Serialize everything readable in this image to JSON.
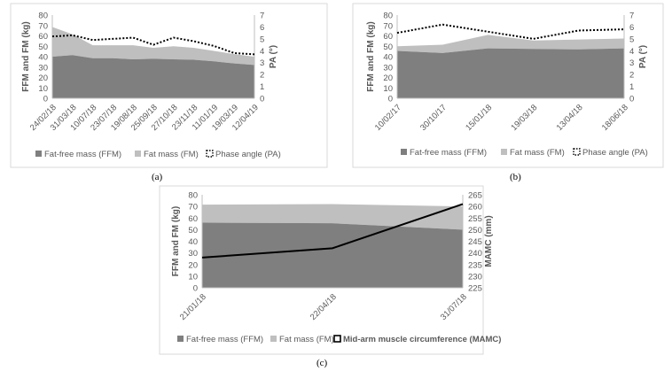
{
  "chart_data": [
    {
      "id": "a",
      "type": "area",
      "caption": "(a)",
      "categories": [
        "24/02/18",
        "31/03/18",
        "10/07/18",
        "23/07/18",
        "19/08/18",
        "25/09/18",
        "27/10/18",
        "23/11/18",
        "11/01/19",
        "19/03/19",
        "12/04/19"
      ],
      "series": [
        {
          "name": "Fat-free mass (FFM)",
          "axis": "left",
          "kind": "area",
          "color": "#7f7f7f",
          "values": [
            40,
            41.5,
            38.5,
            38.5,
            37.5,
            38,
            37.5,
            37,
            35.5,
            33.5,
            32
          ]
        },
        {
          "name": "Fat mass (FM)",
          "axis": "left",
          "kind": "area",
          "color": "#bfbfbf",
          "values": [
            28.5,
            20,
            12.5,
            12.5,
            13.5,
            10.5,
            12.5,
            11.5,
            10,
            9,
            8
          ]
        },
        {
          "name": "Phase angle (PA)",
          "axis": "right",
          "kind": "dotted-line",
          "color": "#000000",
          "values": [
            5.2,
            5.3,
            4.9,
            5.0,
            5.1,
            4.5,
            5.1,
            4.8,
            4.4,
            3.8,
            3.7
          ]
        }
      ],
      "ylabel": "FFM and FM (kg)",
      "ylim": [
        0,
        80
      ],
      "yticks": [
        0,
        10,
        20,
        30,
        40,
        50,
        60,
        70,
        80
      ],
      "y2label": "PA (°)",
      "y2lim": [
        0,
        7
      ],
      "y2ticks": [
        0,
        1,
        2,
        3,
        4,
        5,
        6,
        7
      ],
      "legend": [
        "Fat-free mass (FFM)",
        "Fat mass (FM)",
        "Phase angle (PA)"
      ]
    },
    {
      "id": "b",
      "type": "area",
      "caption": "(b)",
      "categories": [
        "10/02/17",
        "30/10/17",
        "15/01/18",
        "19/03/18",
        "13/04/18",
        "18/06/18"
      ],
      "series": [
        {
          "name": "Fat-free mass (FFM)",
          "axis": "left",
          "kind": "area",
          "color": "#7f7f7f",
          "values": [
            45.5,
            43.5,
            48,
            47.5,
            47,
            48
          ]
        },
        {
          "name": "Fat mass (FM)",
          "axis": "left",
          "kind": "area",
          "color": "#bfbfbf",
          "values": [
            4.5,
            8,
            13,
            8,
            9.5,
            9.5
          ]
        },
        {
          "name": "Phase angle (PA)",
          "axis": "right",
          "kind": "dotted-line",
          "color": "#000000",
          "values": [
            5.5,
            6.2,
            5.6,
            5.0,
            5.7,
            5.8
          ]
        }
      ],
      "ylabel": "FFM and FM (kg)",
      "ylim": [
        0,
        80
      ],
      "yticks": [
        0,
        10,
        20,
        30,
        40,
        50,
        60,
        70,
        80
      ],
      "y2label": "PA (°)",
      "y2lim": [
        0,
        7
      ],
      "y2ticks": [
        0,
        1,
        2,
        3,
        4,
        5,
        6,
        7
      ],
      "legend": [
        "Fat-free mass (FFM)",
        "Fat mass (FM)",
        "Phase angle (PA)"
      ]
    },
    {
      "id": "c",
      "type": "area",
      "caption": "(c)",
      "categories": [
        "21/01/18",
        "22/04/18",
        "31/07/18"
      ],
      "series": [
        {
          "name": "Fat-free mass (FFM)",
          "axis": "left",
          "kind": "area",
          "color": "#7f7f7f",
          "values": [
            56,
            55.5,
            50
          ]
        },
        {
          "name": "Fat mass (FM)",
          "axis": "left",
          "kind": "area",
          "color": "#bfbfbf",
          "values": [
            15.5,
            16.5,
            20
          ]
        },
        {
          "name": "Mid-arm muscle circumference (MAMC)",
          "axis": "right",
          "kind": "solid-line",
          "color": "#000000",
          "values": [
            238,
            242,
            261
          ]
        }
      ],
      "ylabel": "FFM and FM (kg)",
      "ylim": [
        0,
        80
      ],
      "yticks": [
        0,
        10,
        20,
        30,
        40,
        50,
        60,
        70,
        80
      ],
      "y2label": "MAMC (mm)",
      "y2lim": [
        225,
        265
      ],
      "y2ticks": [
        225,
        230,
        235,
        240,
        245,
        250,
        255,
        260,
        265
      ],
      "legend": [
        "Fat-free mass (FFM)",
        "Fat mass (FM)",
        "Mid-arm muscle circumference (MAMC)"
      ]
    }
  ]
}
